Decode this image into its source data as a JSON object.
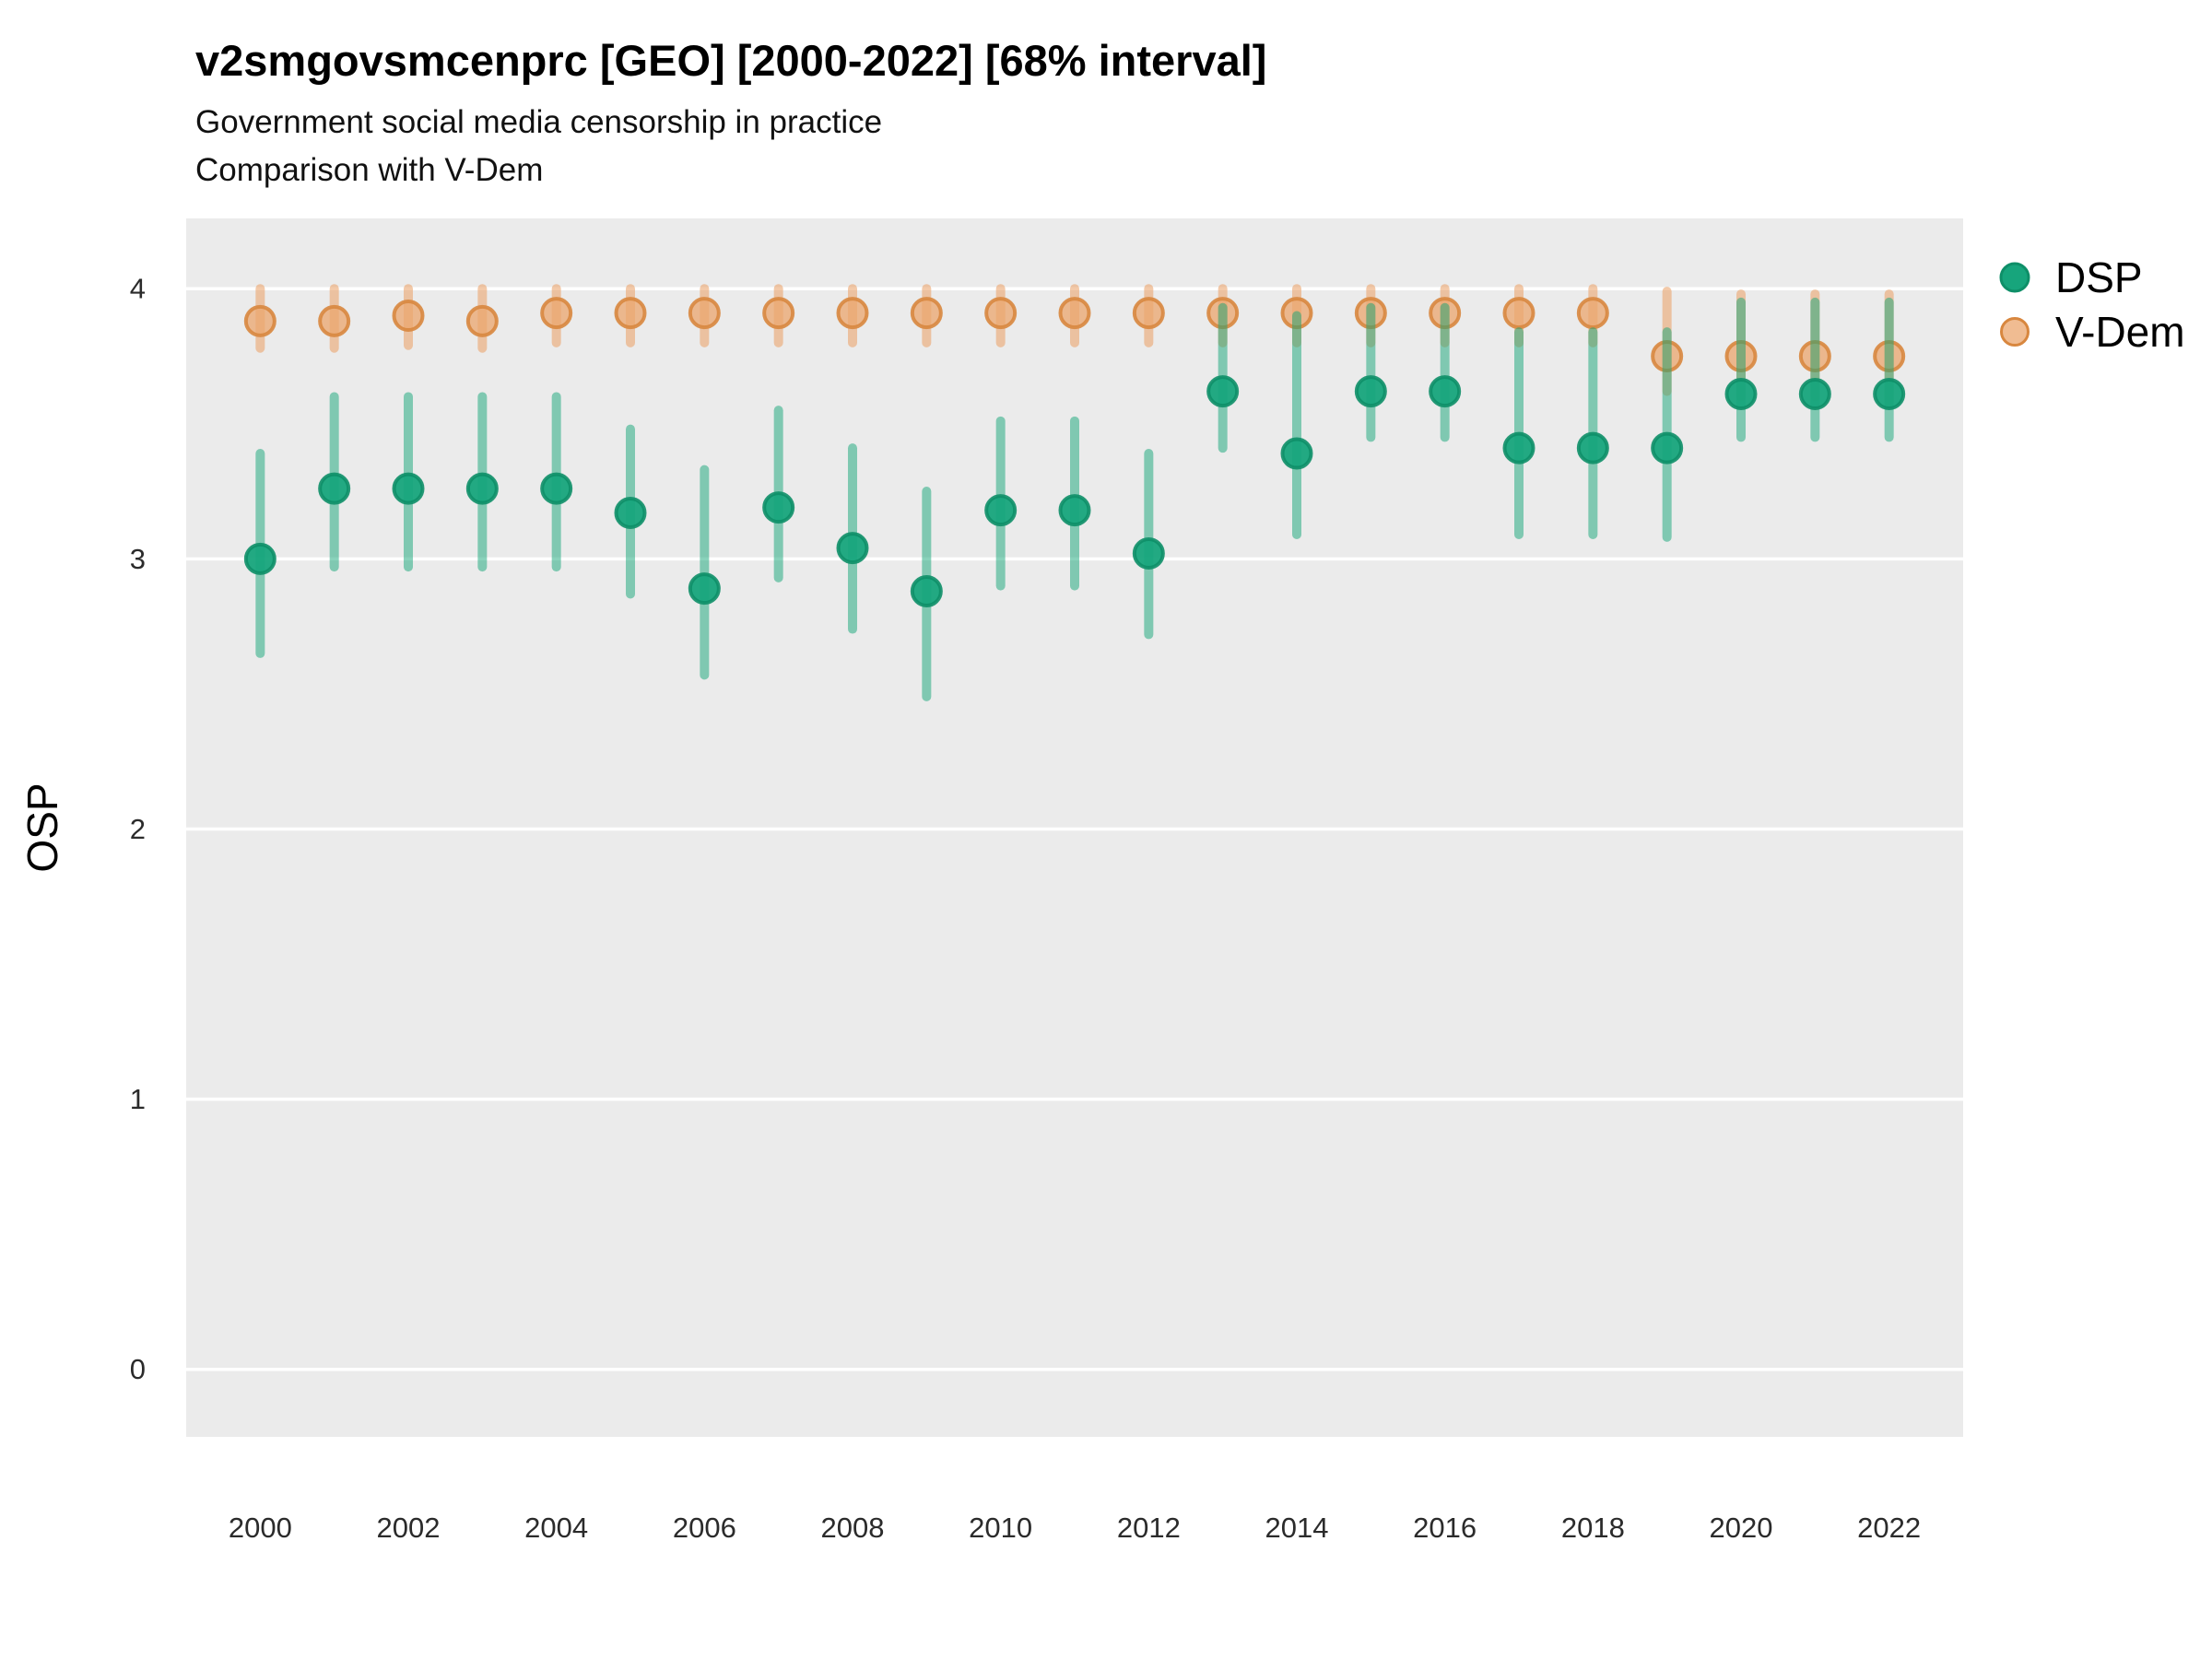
{
  "title": "v2smgovsmcenprc [GEO] [2000-2022] [68% interval]",
  "subtitle1": "Government social media censorship in practice",
  "subtitle2": "Comparison with V-Dem",
  "ylabel": "OSP",
  "legend": {
    "position": "right",
    "items": [
      {
        "label": "DSP"
      },
      {
        "label": "V-Dem"
      }
    ]
  },
  "colors": {
    "dsp_point": "#17a57c",
    "dsp_point_stroke": "#0e8f68",
    "dsp_bar": "#14a578",
    "vdem_point": "#eba56e",
    "vdem_point_stroke": "#d8873f",
    "vdem_bar": "#eba56e",
    "panel_bg": "#ebebeb",
    "grid": "#ffffff"
  },
  "chart_data": {
    "type": "pointrange",
    "title": "v2smgovsmcenprc [GEO] [2000-2022] [68% interval]",
    "subtitle": [
      "Government social media censorship in practice",
      "Comparison with V-Dem"
    ],
    "interval": "68%",
    "xlabel": "",
    "ylabel": "OSP",
    "grid": "horizontal-major",
    "legend_position": "right",
    "xlim": [
      1999,
      2023
    ],
    "ylim": [
      -0.25,
      4.26
    ],
    "xticks": [
      2000,
      2002,
      2004,
      2006,
      2008,
      2010,
      2012,
      2014,
      2016,
      2018,
      2020,
      2022
    ],
    "yticks": [
      4,
      3,
      2,
      1,
      0
    ],
    "x": [
      2000,
      2001,
      2002,
      2003,
      2004,
      2005,
      2006,
      2007,
      2008,
      2009,
      2010,
      2011,
      2012,
      2013,
      2014,
      2015,
      2016,
      2017,
      2018,
      2019,
      2020,
      2021,
      2022
    ],
    "series": [
      {
        "name": "DSP",
        "values": [
          3.0,
          3.26,
          3.26,
          3.26,
          3.26,
          3.17,
          2.89,
          3.19,
          3.04,
          2.88,
          3.18,
          3.18,
          3.02,
          3.62,
          3.39,
          3.62,
          3.62,
          3.41,
          3.41,
          3.41,
          3.61,
          3.61,
          3.61
        ],
        "lower": [
          2.65,
          2.97,
          2.97,
          2.97,
          2.97,
          2.87,
          2.57,
          2.93,
          2.74,
          2.49,
          2.9,
          2.9,
          2.72,
          3.41,
          3.09,
          3.45,
          3.45,
          3.09,
          3.09,
          3.08,
          3.45,
          3.45,
          3.45
        ],
        "upper": [
          3.39,
          3.6,
          3.6,
          3.6,
          3.6,
          3.48,
          3.33,
          3.55,
          3.41,
          3.25,
          3.51,
          3.51,
          3.39,
          3.93,
          3.9,
          3.93,
          3.93,
          3.84,
          3.84,
          3.84,
          3.95,
          3.95,
          3.95
        ]
      },
      {
        "name": "V-Dem",
        "values": [
          3.88,
          3.88,
          3.9,
          3.88,
          3.91,
          3.91,
          3.91,
          3.91,
          3.91,
          3.91,
          3.91,
          3.91,
          3.91,
          3.91,
          3.91,
          3.91,
          3.91,
          3.91,
          3.91,
          3.75,
          3.75,
          3.75,
          3.75
        ],
        "lower": [
          3.78,
          3.78,
          3.79,
          3.78,
          3.8,
          3.8,
          3.8,
          3.8,
          3.8,
          3.8,
          3.8,
          3.8,
          3.8,
          3.8,
          3.8,
          3.8,
          3.8,
          3.8,
          3.8,
          3.62,
          3.6,
          3.6,
          3.58
        ],
        "upper": [
          4.0,
          4.0,
          4.0,
          4.0,
          4.0,
          4.0,
          4.0,
          4.0,
          4.0,
          4.0,
          4.0,
          4.0,
          4.0,
          4.0,
          4.0,
          4.0,
          4.0,
          4.0,
          4.0,
          3.99,
          3.98,
          3.98,
          3.98
        ]
      }
    ]
  }
}
